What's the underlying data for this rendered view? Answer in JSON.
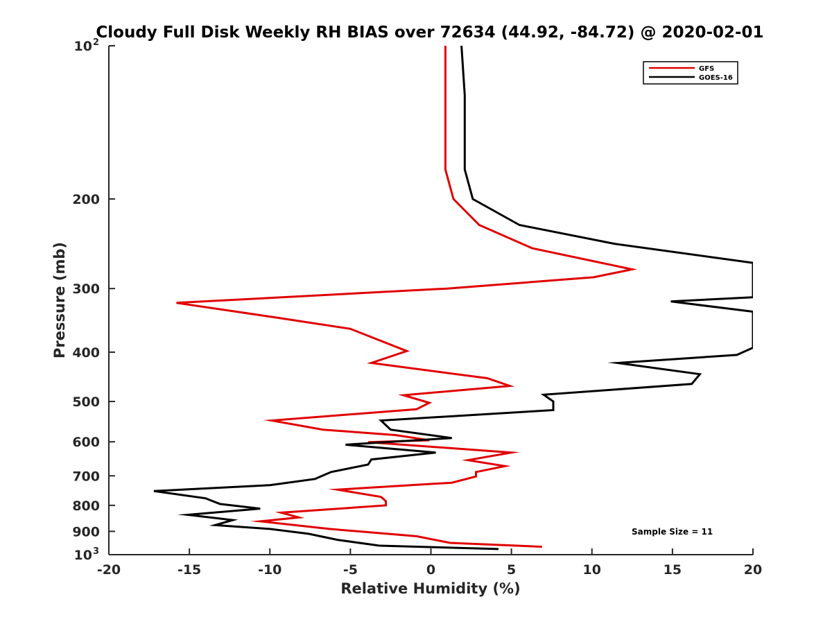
{
  "chart_data": {
    "type": "line",
    "title": "Cloudy Full Disk Weekly RH BIAS over 72634 (44.92, -84.72) @ 2020-02-01",
    "xlabel": "Relative Humidity (%)",
    "ylabel": "Pressure (mb)",
    "xlim": [
      -20,
      20
    ],
    "ylim": [
      100,
      1000
    ],
    "y_scale": "log",
    "y_reversed": true,
    "grid": false,
    "legend_position": "top-right",
    "x_ticks": [
      "-20",
      "-15",
      "-10",
      "-5",
      "0",
      "5",
      "10",
      "15",
      "20"
    ],
    "y_ticks": [
      {
        "value": 100,
        "base": "10",
        "exp": "2"
      },
      {
        "value": 200,
        "label": "200"
      },
      {
        "value": 300,
        "label": "300"
      },
      {
        "value": 400,
        "label": "400"
      },
      {
        "value": 500,
        "label": "500"
      },
      {
        "value": 600,
        "label": "600"
      },
      {
        "value": 700,
        "label": "700"
      },
      {
        "value": 800,
        "label": "800"
      },
      {
        "value": 900,
        "label": "900"
      },
      {
        "value": 1000,
        "base": "10",
        "exp": "3"
      }
    ],
    "annotation": "Sample Size = 11",
    "series": [
      {
        "name": "GFS",
        "color": "#e00000",
        "points": [
          [
            0.9,
            100
          ],
          [
            0.9,
            125
          ],
          [
            0.9,
            150
          ],
          [
            0.9,
            175
          ],
          [
            1.4,
            200
          ],
          [
            3.0,
            225
          ],
          [
            6.3,
            250
          ],
          [
            12.5,
            275
          ],
          [
            10.1,
            285
          ],
          [
            1.0,
            300
          ],
          [
            -15.8,
            320
          ],
          [
            -9.6,
            342
          ],
          [
            -5.0,
            360
          ],
          [
            -1.5,
            398
          ],
          [
            -3.7,
            420
          ],
          [
            3.5,
            450
          ],
          [
            4.9,
            466
          ],
          [
            -1.7,
            486
          ],
          [
            -0.1,
            503
          ],
          [
            -0.9,
            518
          ],
          [
            -9.9,
            545
          ],
          [
            -6.7,
            568
          ],
          [
            -2.2,
            582
          ],
          [
            -0.1,
            596
          ],
          [
            -3.9,
            601
          ],
          [
            5.0,
            630
          ],
          [
            2.3,
            652
          ],
          [
            4.6,
            670
          ],
          [
            2.8,
            688
          ],
          [
            2.8,
            702
          ],
          [
            1.3,
            722
          ],
          [
            -5.8,
            745
          ],
          [
            -3.1,
            770
          ],
          [
            -2.8,
            785
          ],
          [
            -2.8,
            800
          ],
          [
            -9.3,
            827
          ],
          [
            -8.2,
            845
          ],
          [
            -10.6,
            860
          ],
          [
            -6.3,
            890
          ],
          [
            -0.9,
            920
          ],
          [
            1.2,
            948
          ],
          [
            6.9,
            965
          ]
        ]
      },
      {
        "name": "GOES-16",
        "color": "#000000",
        "points": [
          [
            1.9,
            100
          ],
          [
            2.1,
            125
          ],
          [
            2.1,
            150
          ],
          [
            2.1,
            175
          ],
          [
            2.6,
            200
          ],
          [
            5.5,
            225
          ],
          [
            11.4,
            245
          ],
          [
            20.0,
            267
          ],
          [
            20.0,
            312
          ],
          [
            14.9,
            318
          ],
          [
            20.0,
            333
          ],
          [
            20.0,
            392
          ],
          [
            19.0,
            405
          ],
          [
            11.6,
            420
          ],
          [
            16.7,
            442
          ],
          [
            16.2,
            462
          ],
          [
            7.0,
            485
          ],
          [
            7.6,
            500
          ],
          [
            7.6,
            520
          ],
          [
            -3.1,
            545
          ],
          [
            -2.5,
            568
          ],
          [
            1.3,
            590
          ],
          [
            -5.3,
            608
          ],
          [
            0.3,
            630
          ],
          [
            -3.7,
            650
          ],
          [
            -3.9,
            665
          ],
          [
            -6.2,
            688
          ],
          [
            -7.2,
            710
          ],
          [
            -10.0,
            730
          ],
          [
            -17.2,
            750
          ],
          [
            -14.0,
            775
          ],
          [
            -13.1,
            795
          ],
          [
            -10.6,
            812
          ],
          [
            -15.1,
            835
          ],
          [
            -12.3,
            855
          ],
          [
            -13.4,
            875
          ],
          [
            -10.0,
            890
          ],
          [
            -7.6,
            910
          ],
          [
            -5.8,
            935
          ],
          [
            -3.2,
            960
          ],
          [
            4.2,
            975
          ]
        ]
      }
    ]
  }
}
